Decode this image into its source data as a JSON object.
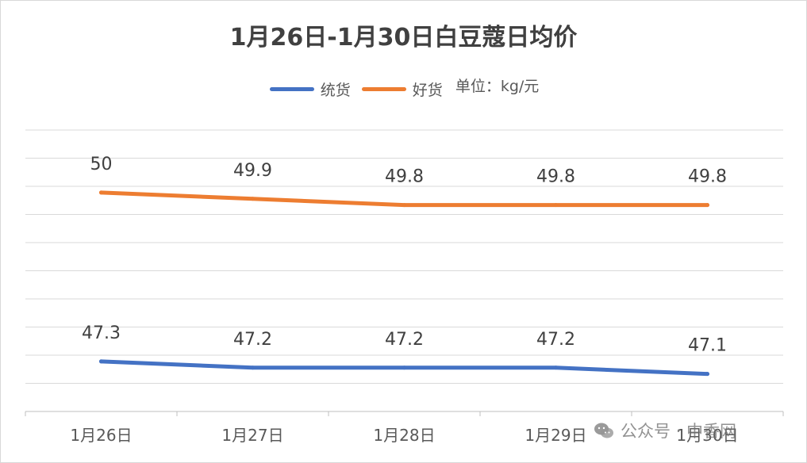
{
  "chart_data": {
    "type": "line",
    "title": "1月26日-1月30日白豆蔻日均价",
    "categories": [
      "1月26日",
      "1月27日",
      "1月28日",
      "1月29日",
      "1月30日"
    ],
    "unit_note": "单位：kg/元",
    "series": [
      {
        "name": "统货",
        "values": [
          47.3,
          47.2,
          47.2,
          47.2,
          47.1
        ],
        "color": "#4472c4",
        "labels": [
          "47.3",
          "47.2",
          "47.2",
          "47.2",
          "47.1"
        ]
      },
      {
        "name": "好货",
        "values": [
          50,
          49.9,
          49.8,
          49.8,
          49.8
        ],
        "color": "#ed7d31",
        "labels": [
          "50",
          "49.9",
          "49.8",
          "49.8",
          "49.8"
        ]
      }
    ],
    "ylim": [
      46.5,
      51
    ],
    "y_tick_labels_shown": false,
    "grid": true,
    "legend_position": "top"
  },
  "watermark": {
    "text": "公众号 · 中香网",
    "icon": "wechat-icon"
  }
}
